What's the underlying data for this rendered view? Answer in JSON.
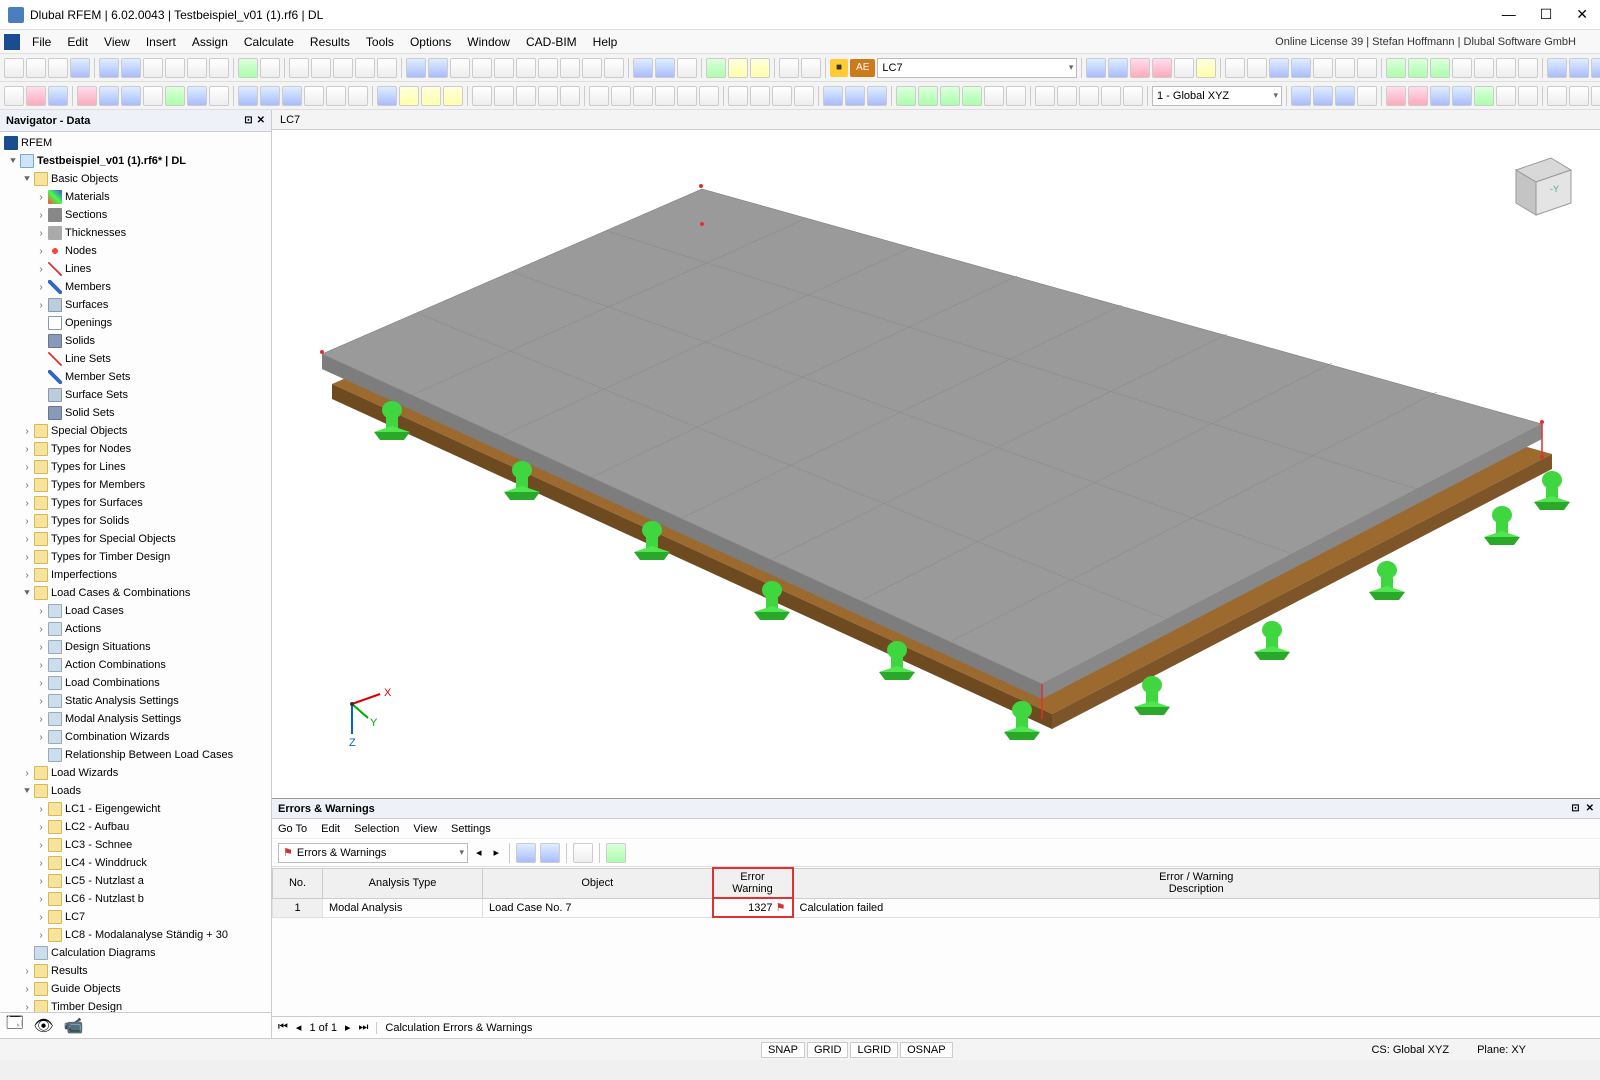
{
  "window": {
    "title": "Dlubal RFEM | 6.02.0043 | Testbeispiel_v01 (1).rf6 | DL",
    "license": "Online License 39 | Stefan Hoffmann | Dlubal Software GmbH"
  },
  "menus": [
    "File",
    "Edit",
    "View",
    "Insert",
    "Assign",
    "Calculate",
    "Results",
    "Tools",
    "Options",
    "Window",
    "CAD-BIM",
    "Help"
  ],
  "toolbar1": {
    "badge": "AE",
    "combo_lc": "LC7"
  },
  "toolbar2": {
    "combo_cs": "1 - Global XYZ"
  },
  "navigator": {
    "title": "Navigator - Data",
    "root": "RFEM",
    "file": "Testbeispiel_v01 (1).rf6* | DL",
    "groups": {
      "basic": "Basic Objects",
      "basic_children": [
        "Materials",
        "Sections",
        "Thicknesses",
        "Nodes",
        "Lines",
        "Members",
        "Surfaces",
        "Openings",
        "Solids",
        "Line Sets",
        "Member Sets",
        "Surface Sets",
        "Solid Sets"
      ],
      "special": "Special Objects",
      "tnodes": "Types for Nodes",
      "tlines": "Types for Lines",
      "tmembers": "Types for Members",
      "tsurfaces": "Types for Surfaces",
      "tsolids": "Types for Solids",
      "tspecial": "Types for Special Objects",
      "ttimber": "Types for Timber Design",
      "imperf": "Imperfections",
      "lcc": "Load Cases & Combinations",
      "lcc_children": [
        "Load Cases",
        "Actions",
        "Design Situations",
        "Action Combinations",
        "Load Combinations",
        "Static Analysis Settings",
        "Modal Analysis Settings",
        "Combination Wizards",
        "Relationship Between Load Cases"
      ],
      "lwiz": "Load Wizards",
      "loads": "Loads",
      "loads_children": [
        "LC1 - Eigengewicht",
        "LC2 - Aufbau",
        "LC3 - Schnee",
        "LC4 - Winddruck",
        "LC5 - Nutzlast a",
        "LC6 - Nutzlast b",
        "LC7",
        "LC8 - Modalanalyse Ständig + 30"
      ],
      "calcdiag": "Calculation Diagrams",
      "results": "Results",
      "guide": "Guide Objects",
      "timber": "Timber Design"
    }
  },
  "viewport": {
    "tab": "LC7",
    "axis_x": "X",
    "axis_y": "Y",
    "axis_z": "Z",
    "colors": {
      "slab_top": "#9a9a9a",
      "slab_side": "#7d7d7d",
      "timber": "#9c6a2f",
      "timber_side": "#6d4a20",
      "support": "#3fd63f",
      "support_dark": "#2aa82a"
    }
  },
  "errors": {
    "title": "Errors & Warnings",
    "menu": [
      "Go To",
      "Edit",
      "Selection",
      "View",
      "Settings"
    ],
    "combo": "Errors & Warnings",
    "cols": {
      "no": "No.",
      "analysis": "Analysis Type",
      "object": "Object",
      "err": "Error\nWarning",
      "desc": "Error / Warning\nDescription"
    },
    "row": {
      "no": "1",
      "analysis": "Modal Analysis",
      "object": "Load Case No. 7",
      "err": "1327",
      "desc": "Calculation failed"
    },
    "pager": "1 of 1",
    "pager_label": "Calculation Errors & Warnings"
  },
  "statusbar": {
    "snap": "SNAP",
    "grid": "GRID",
    "lgrid": "LGRID",
    "osnap": "OSNAP",
    "cs": "CS: Global XYZ",
    "plane": "Plane: XY"
  }
}
